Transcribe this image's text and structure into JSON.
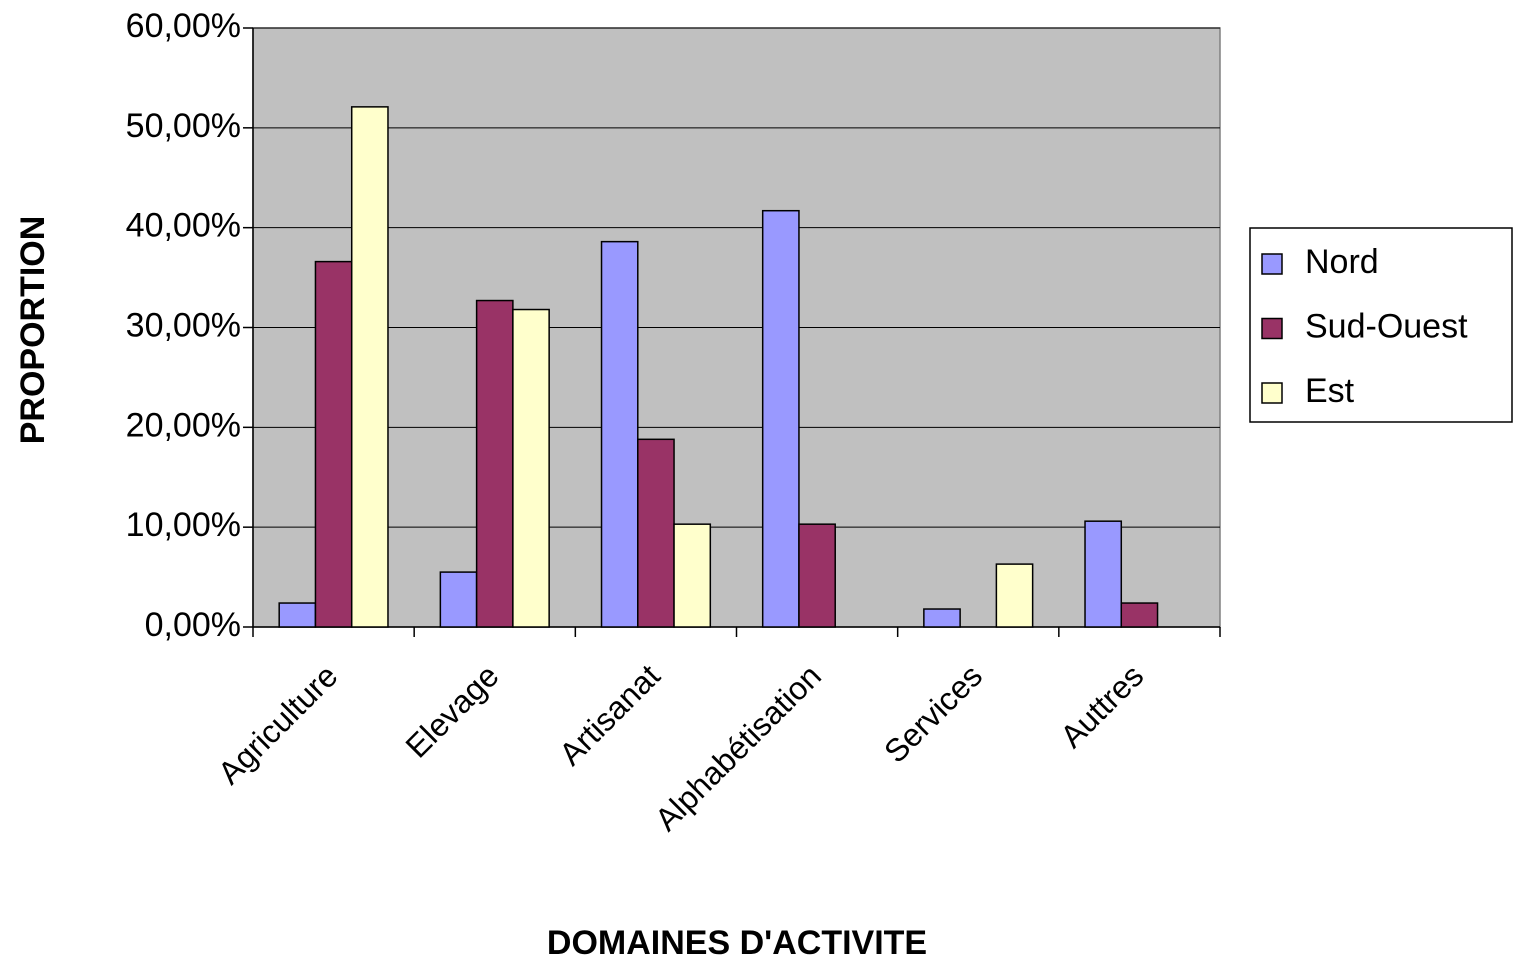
{
  "chart_data": {
    "type": "bar",
    "xlabel": "DOMAINES D'ACTIVITE",
    "ylabel": "PROPORTION",
    "categories": [
      "Agriculture",
      "Elevage",
      "Artisanat",
      "Alphabétisation",
      "Services",
      "Auttres"
    ],
    "series": [
      {
        "name": "Nord",
        "color": "#9999ff",
        "values": [
          2.4,
          5.5,
          38.6,
          41.7,
          1.8,
          10.6
        ]
      },
      {
        "name": "Sud-Ouest",
        "color": "#993366",
        "values": [
          36.6,
          32.7,
          18.8,
          10.3,
          0,
          2.4
        ]
      },
      {
        "name": "Est",
        "color": "#ffffcc",
        "values": [
          52.1,
          31.8,
          10.3,
          0,
          6.3,
          0
        ]
      }
    ],
    "ylim": [
      0,
      60
    ],
    "yticks": [
      {
        "value": 0,
        "label": "0,00%"
      },
      {
        "value": 10,
        "label": "10,00%"
      },
      {
        "value": 20,
        "label": "20,00%"
      },
      {
        "value": 30,
        "label": "30,00%"
      },
      {
        "value": 40,
        "label": "40,00%"
      },
      {
        "value": 50,
        "label": "50,00%"
      },
      {
        "value": 60,
        "label": "60,00%"
      }
    ],
    "grid": true,
    "legend": "right",
    "plot_background": "#c0c0c0"
  }
}
